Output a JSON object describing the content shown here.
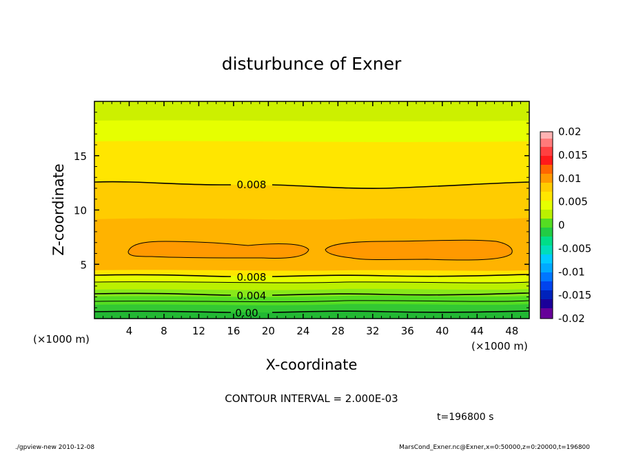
{
  "chart_data": {
    "type": "heatmap",
    "title": "disturbunce of Exner",
    "xlabel": "X-coordinate",
    "ylabel": "Z-coordinate",
    "x_unit_label": "(×1000 m)",
    "y_unit_label": "(×1000 m)",
    "xlim": [
      0,
      50
    ],
    "ylim": [
      0,
      20
    ],
    "x_ticks": [
      4,
      8,
      12,
      16,
      20,
      24,
      28,
      32,
      36,
      40,
      44,
      48
    ],
    "y_ticks": [
      5,
      10,
      15
    ],
    "contour_labels": [
      {
        "text": "0.008",
        "x": 23.0,
        "z": 12.3
      },
      {
        "text": "0.008",
        "x": 23.0,
        "z": 3.8
      },
      {
        "text": "0.004",
        "x": 23.0,
        "z": 2.0
      },
      {
        "text": "0.00",
        "x": 23.0,
        "z": 0.5
      }
    ],
    "colorbar": {
      "ticks": [
        "0.02",
        "0.015",
        "0.01",
        "0.005",
        "0",
        "-0.005",
        "-0.01",
        "-0.015",
        "-0.02"
      ],
      "values": [
        0.02,
        0.015,
        0.01,
        0.005,
        0,
        -0.005,
        -0.01,
        -0.015,
        -0.02
      ]
    },
    "contour_interval_text": "CONTOUR INTERVAL = 2.000E-03",
    "time_text": "t=196800 s",
    "footer_left": "./gpview-new   2010-12-08",
    "footer_right": "MarsCond_Exner.nc@Exner,x=0:50000,z=0:20000,t=196800"
  },
  "colors": {
    "band_0": "#33c833",
    "band_1": "#55dd22",
    "band_2": "#88e81a",
    "band_3": "#bbf000",
    "band_4": "#e6ff00",
    "band_5": "#ffe600",
    "band_6": "#ffcc00",
    "band_7": "#ffb300",
    "band_8": "#ff9900"
  }
}
